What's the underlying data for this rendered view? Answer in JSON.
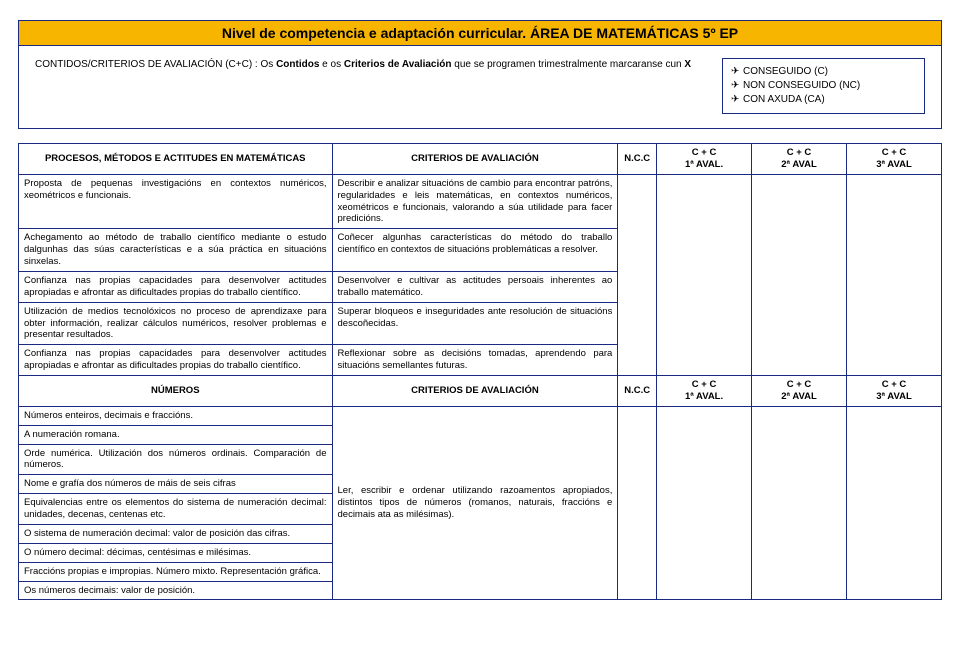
{
  "header": {
    "title": "Nivel de competencia e adaptación curricular. ÁREA DE MATEMÁTICAS 5º EP",
    "contidos_prefix": "CONTIDOS/CRITERIOS DE AVALIACIÓN (C+C) : Os ",
    "contidos_bold1": "Contidos",
    "contidos_mid": " e os ",
    "contidos_bold2": "Criterios de Avaliación",
    "contidos_suffix": " que se programen trimestralmente marcaranse cun ",
    "contidos_x": "X",
    "legend1": "CONSEGUIDO (C)",
    "legend2": "NON CONSEGUIDO (NC)",
    "legend3": "CON AXUDA (CA)"
  },
  "cols": {
    "procesos": "PROCESOS, MÉTODOS E ACTITUDES EN MATEMÁTICAS",
    "criterios": "CRITERIOS DE AVALIACIÓN",
    "ncc": "N.C.C",
    "cc1a": "C + C",
    "cc1b": "1ª AVAL.",
    "cc2a": "C + C",
    "cc2b": "2ª AVAL",
    "cc3a": "C + C",
    "cc3b": "3ª AVAL",
    "numeros": "NÚMEROS"
  },
  "rows": {
    "p1l": "Proposta de pequenas investigacións en contextos numéricos, xeométricos e funcionais.",
    "p1r": "Describir e analizar situacións de cambio para encontrar patróns, regularidades e leis matemáticas, en contextos numéricos, xeométricos e funcionais, valorando a súa utilidade para facer predicións.",
    "p2l": "Achegamento ao método de traballo científico mediante o estudo dalgunhas das súas características e a súa práctica en situacións sinxelas.",
    "p2r": "Coñecer algunhas características do método do traballo científico en contextos de situacións problemáticas a resolver.",
    "p3l": "Confianza nas propias capacidades para desenvolver actitudes apropiadas e afrontar as dificultades propias do traballo científico.",
    "p3r": "Desenvolver e cultivar as actitudes persoais inherentes ao traballo matemático.",
    "p4l": "Utilización de medios tecnolóxicos no proceso de aprendizaxe para obter información, realizar cálculos numéricos, resolver problemas e presentar resultados.",
    "p4r": "Superar bloqueos e inseguridades ante resolución de situacións descoñecidas.",
    "p5l": "Confianza nas propias capacidades para desenvolver actitudes apropiadas e afrontar as dificultades propias do traballo científico.",
    "p5r": "Reflexionar sobre as decisións tomadas, aprendendo para situacións semellantes futuras.",
    "n1": "Números enteiros, decimais e fraccións.",
    "n2": "A numeración romana.",
    "n3": "Orde numérica. Utilización dos números ordinais. Comparación de números.",
    "n4": "Nome e grafía dos números de máis de seis cifras",
    "n5": "Equivalencias entre os elementos do sistema de numeración decimal: unidades, decenas, centenas etc.",
    "n6": "O sistema de numeración decimal: valor de posición das cifras.",
    "n7": "O número decimal: décimas, centésimas e milésimas.",
    "n8": "Fraccións propias e impropias. Número mixto. Representación gráfica.",
    "n9": "Os números decimais: valor de posición.",
    "nr": "Ler, escribir e ordenar utilizando razoamentos apropiados, distintos tipos de números (romanos, naturais, fraccións e decimais ata as milésimas)."
  }
}
